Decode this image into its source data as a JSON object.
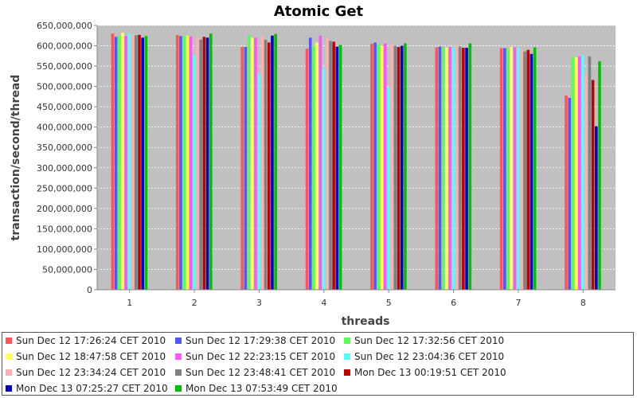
{
  "chart_data": {
    "type": "bar",
    "title": "Atomic Get",
    "xlabel": "threads",
    "ylabel": "transaction/second/thread",
    "categories": [
      "1",
      "2",
      "3",
      "4",
      "5",
      "6",
      "7",
      "8"
    ],
    "ylim": [
      0,
      650000000
    ],
    "yticks": [
      0,
      50000000,
      100000000,
      150000000,
      200000000,
      250000000,
      300000000,
      350000000,
      400000000,
      450000000,
      500000000,
      550000000,
      600000000,
      650000000
    ],
    "ytick_labels": [
      "0",
      "50,000,000",
      "100,000,000",
      "150,000,000",
      "200,000,000",
      "250,000,000",
      "300,000,000",
      "350,000,000",
      "400,000,000",
      "450,000,000",
      "500,000,000",
      "550,000,000",
      "600,000,000",
      "650,000,000"
    ],
    "grid": true,
    "legend_position": "bottom",
    "series": [
      {
        "name": "Sun Dec 12 17:26:24 CET 2010",
        "color": "#ff5555",
        "values": [
          630000000,
          627000000,
          597000000,
          593000000,
          605000000,
          596000000,
          594000000,
          478000000
        ]
      },
      {
        "name": "Sun Dec 12 17:29:38 CET 2010",
        "color": "#5555ff",
        "values": [
          622000000,
          624000000,
          597000000,
          620000000,
          608000000,
          598000000,
          594000000,
          472000000
        ]
      },
      {
        "name": "Sun Dec 12 17:32:56 CET 2010",
        "color": "#55ff55",
        "values": [
          625000000,
          624000000,
          628000000,
          600000000,
          604000000,
          597000000,
          593000000,
          572000000
        ]
      },
      {
        "name": "Sun Dec 12 18:47:58 CET 2010",
        "color": "#ffff55",
        "values": [
          632000000,
          625000000,
          620000000,
          608000000,
          600000000,
          596000000,
          597000000,
          572000000
        ]
      },
      {
        "name": "Sun Dec 12 22:23:15 CET 2010",
        "color": "#ff55ff",
        "values": [
          624000000,
          623000000,
          620000000,
          625000000,
          606000000,
          597000000,
          596000000,
          574000000
        ]
      },
      {
        "name": "Sun Dec 12 23:04:36 CET 2010",
        "color": "#55ffff",
        "values": [
          631000000,
          576000000,
          530000000,
          545000000,
          498000000,
          597000000,
          595000000,
          577000000
        ]
      },
      {
        "name": "Sun Dec 12 23:34:24 CET 2010",
        "color": "#ffafaf",
        "values": [
          628000000,
          620000000,
          624000000,
          620000000,
          604000000,
          600000000,
          592000000,
          530000000
        ]
      },
      {
        "name": "Sun Dec 12 23:48:41 CET 2010",
        "color": "#808080",
        "values": [
          626000000,
          615000000,
          615000000,
          612000000,
          600000000,
          598000000,
          586000000,
          574000000
        ]
      },
      {
        "name": "Mon Dec 13 00:19:51 CET 2010",
        "color": "#c00000",
        "values": [
          627000000,
          622000000,
          608000000,
          610000000,
          597000000,
          595000000,
          590000000,
          516000000
        ]
      },
      {
        "name": "Mon Dec 13 07:25:27 CET 2010",
        "color": "#0000c0",
        "values": [
          620000000,
          620000000,
          625000000,
          598000000,
          600000000,
          595000000,
          580000000,
          402000000
        ]
      },
      {
        "name": "Mon Dec 13 07:53:49 CET 2010",
        "color": "#00c000",
        "values": [
          624000000,
          630000000,
          629000000,
          602000000,
          606000000,
          606000000,
          596000000,
          562000000
        ]
      }
    ]
  }
}
